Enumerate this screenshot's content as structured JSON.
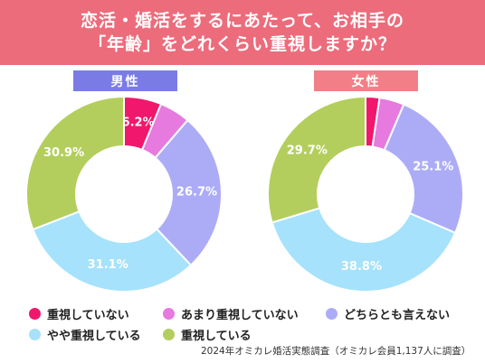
{
  "title": {
    "line1": "恋活・婚活をするにあたって、お相手の",
    "line2": "「年齢」をどれくらい重視しますか？"
  },
  "source": "2024年オミカレ婚活実態調査（オミカレ会員1,137人に調査）",
  "colors": {
    "banner": "#ec6c7c",
    "male_label": "#7b7be6",
    "female_label": "#f27f87"
  },
  "chart_data": [
    {
      "type": "pie",
      "title": "男性",
      "categories": [
        "重視していない",
        "あまり重視していない",
        "どちらとも言えない",
        "やや重視している",
        "重視している"
      ],
      "values": [
        6.2,
        5.1,
        26.7,
        31.1,
        30.9
      ],
      "labels": [
        "6.2%",
        "",
        "26.7%",
        "31.1%",
        "30.9%"
      ],
      "colors": [
        "#f0176c",
        "#e67adf",
        "#acacf6",
        "#a6e2fb",
        "#b3ce5d"
      ]
    },
    {
      "type": "pie",
      "title": "女性",
      "categories": [
        "重視していない",
        "あまり重視していない",
        "どちらとも言えない",
        "やや重視している",
        "重視している"
      ],
      "values": [
        2.3,
        4.1,
        25.1,
        38.8,
        29.7
      ],
      "labels": [
        "",
        "",
        "25.1%",
        "38.8%",
        "29.7%"
      ],
      "colors": [
        "#f0176c",
        "#e67adf",
        "#acacf6",
        "#a6e2fb",
        "#b3ce5d"
      ]
    }
  ],
  "legend": [
    {
      "label": "重視していない",
      "color": "#f0176c"
    },
    {
      "label": "あまり重視していない",
      "color": "#e67adf"
    },
    {
      "label": "どちらとも言えない",
      "color": "#acacf6"
    },
    {
      "label": "やや重視している",
      "color": "#a6e2fb"
    },
    {
      "label": "重視している",
      "color": "#b3ce5d"
    }
  ]
}
